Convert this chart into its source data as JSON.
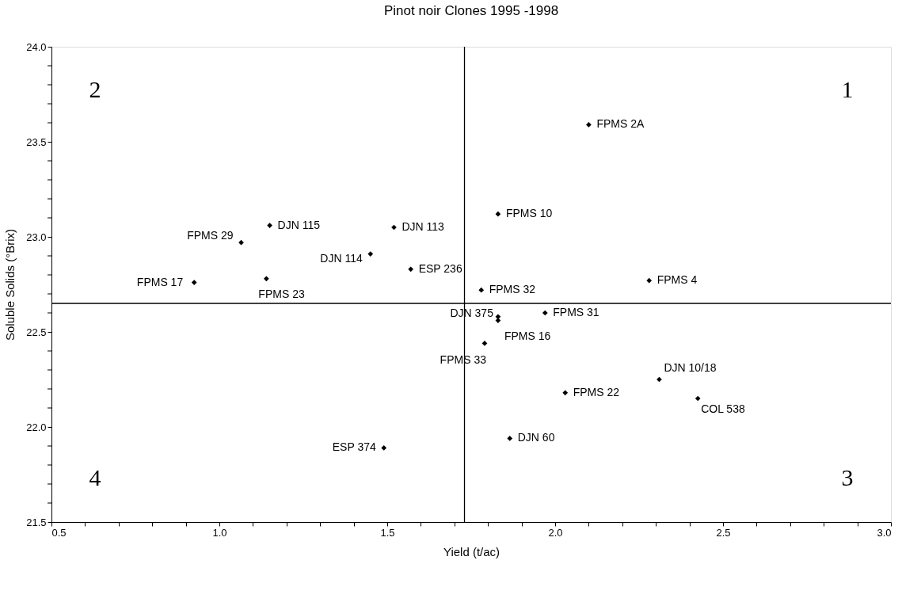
{
  "chart_data": {
    "type": "scatter",
    "title": "Pinot noir Clones 1995 -1998",
    "xlabel": "Yield (t/ac)",
    "ylabel": "Soluble Solids (°Brix)",
    "marker": "diamond",
    "grid": false,
    "xlim": [
      0.5,
      3.0
    ],
    "ylim": [
      21.5,
      24.0
    ],
    "xticks": [
      {
        "value": 0.5,
        "label": "0.5"
      },
      {
        "value": 0.6,
        "label": null
      },
      {
        "value": 0.7,
        "label": null
      },
      {
        "value": 0.8,
        "label": null
      },
      {
        "value": 0.9,
        "label": null
      },
      {
        "value": 1.0,
        "label": "1.0"
      },
      {
        "value": 1.1,
        "label": null
      },
      {
        "value": 1.2,
        "label": null
      },
      {
        "value": 1.3,
        "label": null
      },
      {
        "value": 1.4,
        "label": null
      },
      {
        "value": 1.5,
        "label": "1.5"
      },
      {
        "value": 1.6,
        "label": null
      },
      {
        "value": 1.7,
        "label": null
      },
      {
        "value": 1.8,
        "label": null
      },
      {
        "value": 1.9,
        "label": null
      },
      {
        "value": 2.0,
        "label": "2.0"
      },
      {
        "value": 2.1,
        "label": null
      },
      {
        "value": 2.2,
        "label": null
      },
      {
        "value": 2.3,
        "label": null
      },
      {
        "value": 2.4,
        "label": null
      },
      {
        "value": 2.5,
        "label": "2.5"
      },
      {
        "value": 2.6,
        "label": null
      },
      {
        "value": 2.7,
        "label": null
      },
      {
        "value": 2.8,
        "label": null
      },
      {
        "value": 2.9,
        "label": null
      },
      {
        "value": 3.0,
        "label": "3.0"
      }
    ],
    "yticks": [
      {
        "value": 21.5,
        "label": "21.5"
      },
      {
        "value": 21.6,
        "label": null
      },
      {
        "value": 21.7,
        "label": null
      },
      {
        "value": 21.8,
        "label": null
      },
      {
        "value": 21.9,
        "label": null
      },
      {
        "value": 22.0,
        "label": "22.0"
      },
      {
        "value": 22.1,
        "label": null
      },
      {
        "value": 22.2,
        "label": null
      },
      {
        "value": 22.3,
        "label": null
      },
      {
        "value": 22.4,
        "label": null
      },
      {
        "value": 22.5,
        "label": "22.5"
      },
      {
        "value": 22.6,
        "label": null
      },
      {
        "value": 22.7,
        "label": null
      },
      {
        "value": 22.8,
        "label": null
      },
      {
        "value": 22.9,
        "label": null
      },
      {
        "value": 23.0,
        "label": "23.0"
      },
      {
        "value": 23.1,
        "label": null
      },
      {
        "value": 23.2,
        "label": null
      },
      {
        "value": 23.3,
        "label": null
      },
      {
        "value": 23.4,
        "label": null
      },
      {
        "value": 23.5,
        "label": "23.5"
      },
      {
        "value": 23.6,
        "label": null
      },
      {
        "value": 23.7,
        "label": null
      },
      {
        "value": 23.8,
        "label": null
      },
      {
        "value": 23.9,
        "label": null
      },
      {
        "value": 24.0,
        "label": "24.0"
      }
    ],
    "ref_lines": [
      {
        "axis": "x",
        "value": 1.73,
        "color": "#000000"
      },
      {
        "axis": "y",
        "value": 22.65,
        "color": "#000000"
      }
    ],
    "annotations": [
      "1",
      "2",
      "3",
      "4"
    ],
    "series": [
      {
        "name": "FPMS 2A",
        "color": "#000000",
        "x": [
          2.1
        ],
        "values": [
          23.59
        ]
      },
      {
        "name": "FPMS 10",
        "color": "#000000",
        "x": [
          1.83
        ],
        "values": [
          23.12
        ]
      },
      {
        "name": "DJN 115",
        "color": "#000000",
        "x": [
          1.15
        ],
        "values": [
          23.06
        ]
      },
      {
        "name": "DJN 113",
        "color": "#000000",
        "x": [
          1.52
        ],
        "values": [
          23.05
        ]
      },
      {
        "name": "FPMS 29",
        "color": "#000000",
        "x": [
          1.065
        ],
        "values": [
          22.97
        ]
      },
      {
        "name": "DJN 114",
        "color": "#000000",
        "x": [
          1.45
        ],
        "values": [
          22.91
        ]
      },
      {
        "name": "ESP 236",
        "color": "#000000",
        "x": [
          1.57
        ],
        "values": [
          22.83
        ]
      },
      {
        "name": "FPMS 17",
        "color": "#000000",
        "x": [
          0.925
        ],
        "values": [
          22.76
        ]
      },
      {
        "name": "FPMS 23",
        "color": "#000000",
        "x": [
          1.14
        ],
        "values": [
          22.78
        ]
      },
      {
        "name": "FPMS 32",
        "color": "#000000",
        "x": [
          1.78
        ],
        "values": [
          22.72
        ]
      },
      {
        "name": "FPMS 4",
        "color": "#000000",
        "x": [
          2.28
        ],
        "values": [
          22.77
        ]
      },
      {
        "name": "DJN 375",
        "color": "#000000",
        "x": [
          1.83
        ],
        "values": [
          22.58
        ]
      },
      {
        "name": "FPMS 16",
        "color": "#000000",
        "x": [
          1.83
        ],
        "values": [
          22.56
        ]
      },
      {
        "name": "FPMS 31",
        "color": "#000000",
        "x": [
          1.97
        ],
        "values": [
          22.6
        ]
      },
      {
        "name": "FPMS 33",
        "color": "#000000",
        "x": [
          1.79
        ],
        "values": [
          22.44
        ]
      },
      {
        "name": "DJN 10/18",
        "color": "#000000",
        "x": [
          2.31
        ],
        "values": [
          22.25
        ]
      },
      {
        "name": "FPMS 22",
        "color": "#000000",
        "x": [
          2.03
        ],
        "values": [
          22.18
        ]
      },
      {
        "name": "COL 538",
        "color": "#000000",
        "x": [
          2.425
        ],
        "values": [
          22.15
        ]
      },
      {
        "name": "DJN 60",
        "color": "#000000",
        "x": [
          1.865
        ],
        "values": [
          21.94
        ]
      },
      {
        "name": "ESP 374",
        "color": "#000000",
        "x": [
          1.49
        ],
        "values": [
          21.89
        ]
      }
    ]
  }
}
